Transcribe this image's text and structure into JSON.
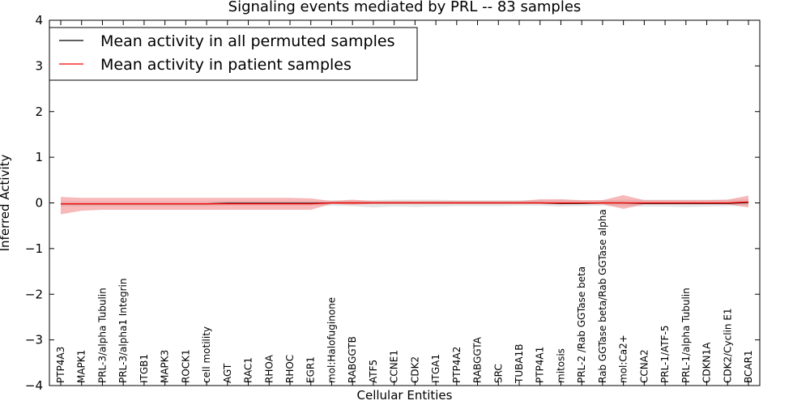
{
  "chart_data": {
    "type": "line",
    "title": "Signaling events mediated by PRL -- 83 samples",
    "xlabel": "Cellular Entities",
    "ylabel": "Inferred Activity",
    "ylim": [
      -4,
      4
    ],
    "yticks": [
      -4,
      -3,
      -2,
      -1,
      0,
      1,
      2,
      3,
      4
    ],
    "ytick_labels": [
      "−4",
      "−3",
      "−2",
      "−1",
      "0",
      "1",
      "2",
      "3",
      "4"
    ],
    "categories": [
      "PTP4A3",
      "MAPK1",
      "PRL-3/alpha Tubulin",
      "PRL-3/alpha1 Integrin",
      "ITGB1",
      "MAPK3",
      "ROCK1",
      "cell motility",
      "AGT",
      "RAC1",
      "RHOA",
      "RHOC",
      "EGR1",
      "mol:Halofuginone",
      "RABGGTB",
      "ATF5",
      "CCNE1",
      "CDK2",
      "ITGA1",
      "PTP4A2",
      "RABGGTA",
      "SRC",
      "TUBA1B",
      "PTP4A1",
      "mitosis",
      "PRL-2 /Rab GGTase beta",
      "Rab GGTase beta/Rab GGTase alpha",
      "mol:Ca2+",
      "CCNA2",
      "PRL-1/ATF-5",
      "PRL-1/alpha Tubulin",
      "CDKN1A",
      "CDK2/Cyclin E1",
      "BCAR1"
    ],
    "legend": {
      "position": "top-left",
      "entries": [
        {
          "label": "Mean activity in all permuted samples",
          "color": "#000000"
        },
        {
          "label": "Mean activity in patient samples",
          "color": "#ff0000"
        }
      ]
    },
    "series": [
      {
        "name": "Mean activity in all permuted samples",
        "color": "#000000",
        "band_color": "#aaaaaa",
        "values": [
          -0.02,
          -0.02,
          -0.02,
          -0.02,
          -0.02,
          -0.02,
          -0.02,
          -0.02,
          -0.01,
          -0.01,
          -0.01,
          -0.01,
          -0.01,
          0.0,
          0.0,
          0.0,
          0.0,
          0.0,
          0.0,
          0.0,
          0.0,
          0.0,
          0.0,
          0.0,
          -0.01,
          -0.01,
          0.0,
          0.0,
          -0.01,
          -0.01,
          -0.01,
          -0.01,
          -0.01,
          0.01
        ],
        "band_low": [
          -0.08,
          -0.07,
          -0.07,
          -0.07,
          -0.07,
          -0.07,
          -0.07,
          -0.07,
          -0.06,
          -0.06,
          -0.06,
          -0.06,
          -0.06,
          -0.06,
          -0.07,
          -0.1,
          -0.08,
          -0.09,
          -0.08,
          -0.07,
          -0.07,
          -0.07,
          -0.06,
          -0.06,
          -0.08,
          -0.07,
          -0.06,
          -0.08,
          -0.08,
          -0.08,
          -0.09,
          -0.08,
          -0.07,
          -0.06
        ],
        "band_high": [
          0.04,
          0.03,
          0.03,
          0.03,
          0.03,
          0.03,
          0.03,
          0.03,
          0.04,
          0.04,
          0.04,
          0.04,
          0.04,
          0.06,
          0.05,
          0.06,
          0.07,
          0.07,
          0.07,
          0.06,
          0.06,
          0.06,
          0.06,
          0.06,
          0.07,
          0.05,
          0.06,
          0.07,
          0.07,
          0.07,
          0.07,
          0.07,
          0.07,
          0.08
        ]
      },
      {
        "name": "Mean activity in patient samples",
        "color": "#ff0000",
        "band_color": "#f08080",
        "values": [
          -0.02,
          -0.02,
          -0.02,
          -0.02,
          -0.02,
          -0.02,
          -0.02,
          -0.02,
          -0.02,
          -0.02,
          -0.02,
          -0.02,
          -0.02,
          0.0,
          0.0,
          0.0,
          0.0,
          0.0,
          0.0,
          0.0,
          0.0,
          0.0,
          0.0,
          0.0,
          0.0,
          0.0,
          0.0,
          0.0,
          0.0,
          0.0,
          0.0,
          0.0,
          0.0,
          0.02
        ],
        "band_low": [
          -0.25,
          -0.17,
          -0.15,
          -0.15,
          -0.15,
          -0.15,
          -0.15,
          -0.15,
          -0.15,
          -0.15,
          -0.15,
          -0.15,
          -0.15,
          -0.02,
          -0.04,
          -0.02,
          -0.02,
          -0.02,
          -0.02,
          -0.02,
          -0.02,
          -0.02,
          -0.02,
          -0.02,
          -0.03,
          -0.02,
          -0.03,
          -0.13,
          -0.03,
          -0.03,
          -0.03,
          -0.03,
          -0.03,
          -0.1
        ],
        "band_high": [
          0.13,
          0.11,
          0.11,
          0.11,
          0.11,
          0.11,
          0.11,
          0.11,
          0.11,
          0.11,
          0.11,
          0.11,
          0.1,
          0.04,
          0.07,
          0.04,
          0.04,
          0.04,
          0.04,
          0.04,
          0.04,
          0.04,
          0.04,
          0.08,
          0.08,
          0.06,
          0.06,
          0.17,
          0.06,
          0.06,
          0.06,
          0.06,
          0.07,
          0.16
        ]
      }
    ]
  }
}
